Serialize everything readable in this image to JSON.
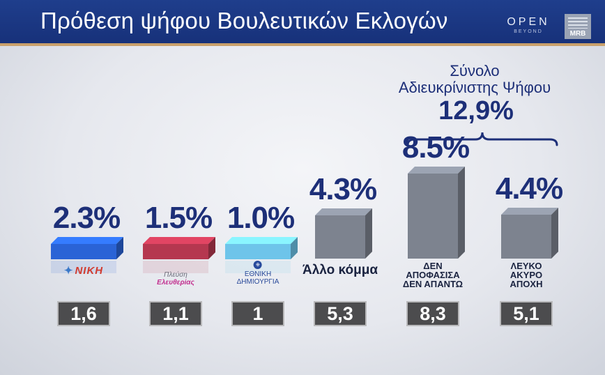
{
  "header": {
    "title": "Πρόθεση ψήφου Βουλευτικών Εκλογών",
    "logo_open": "OPEN",
    "logo_open_sub": "BEYOND",
    "logo_mrb": "MRB"
  },
  "summary": {
    "label_line1": "Σύνολο",
    "label_line2": "Αδιευκρίνιστης Ψήφου",
    "value": "12,9%"
  },
  "party_logos": {
    "niki": "ΝΙΚΗ",
    "plefsi_line1": "Πλεύση",
    "plefsi_line2": "Ελευθερίας",
    "ethniki_line1": "ΕΘΝΙΚΗ",
    "ethniki_line2": "ΔΗΜΙΟΥΡΓΙΑ"
  },
  "chart_data": {
    "type": "bar",
    "categories": [
      "ΝΙΚΗ",
      "Πλεύση Ελευθερίας",
      "ΕΘΝΙΚΗ ΔΗΜΙΟΥΡΓΙΑ",
      "Άλλο κόμμα",
      "ΔΕΝ ΑΠΟΦΑΣΙΣΑ ΔΕΝ ΑΠΑΝΤΩ",
      "ΛΕΥΚΟ ΑΚΥΡΟ ΑΠΟΧΗ"
    ],
    "category_labels": [
      [],
      [],
      [],
      [
        "Άλλο κόμμα"
      ],
      [
        "ΔΕΝ",
        "ΑΠΟΦΑΣΙΣΑ",
        "ΔΕΝ ΑΠΑΝΤΩ"
      ],
      [
        "ΛΕΥΚΟ",
        "ΑΚΥΡΟ",
        "ΑΠΟΧΗ"
      ]
    ],
    "values": [
      2.3,
      1.5,
      1.0,
      4.3,
      8.5,
      4.4
    ],
    "value_labels": [
      "2.3%",
      "1.5%",
      "1.0%",
      "4.3%",
      "8.5%",
      "4.4%"
    ],
    "previous_values": [
      1.6,
      1.1,
      1,
      5.3,
      8.3,
      5.1
    ],
    "previous_labels": [
      "1,6",
      "1,1",
      "1",
      "5,3",
      "8,3",
      "5,1"
    ],
    "bar_colors": [
      "#2a63d6",
      "#b5374f",
      "#6ec4ea",
      "#7d838f",
      "#7d838f",
      "#7d838f"
    ],
    "bracket_covers": [
      "ΔΕΝ ΑΠΟΦΑΣΙΣΑ ΔΕΝ ΑΠΑΝΤΩ",
      "ΛΕΥΚΟ ΑΚΥΡΟ ΑΠΟΧΗ"
    ],
    "title": "Πρόθεση ψήφου Βουλευτικών Εκλογών",
    "xlabel": "",
    "ylabel": "",
    "grid": false,
    "legend": "none"
  },
  "colors": {
    "header_bg": "#17317a",
    "accent_text": "#1d2f78",
    "rule": "#c9a06a"
  }
}
